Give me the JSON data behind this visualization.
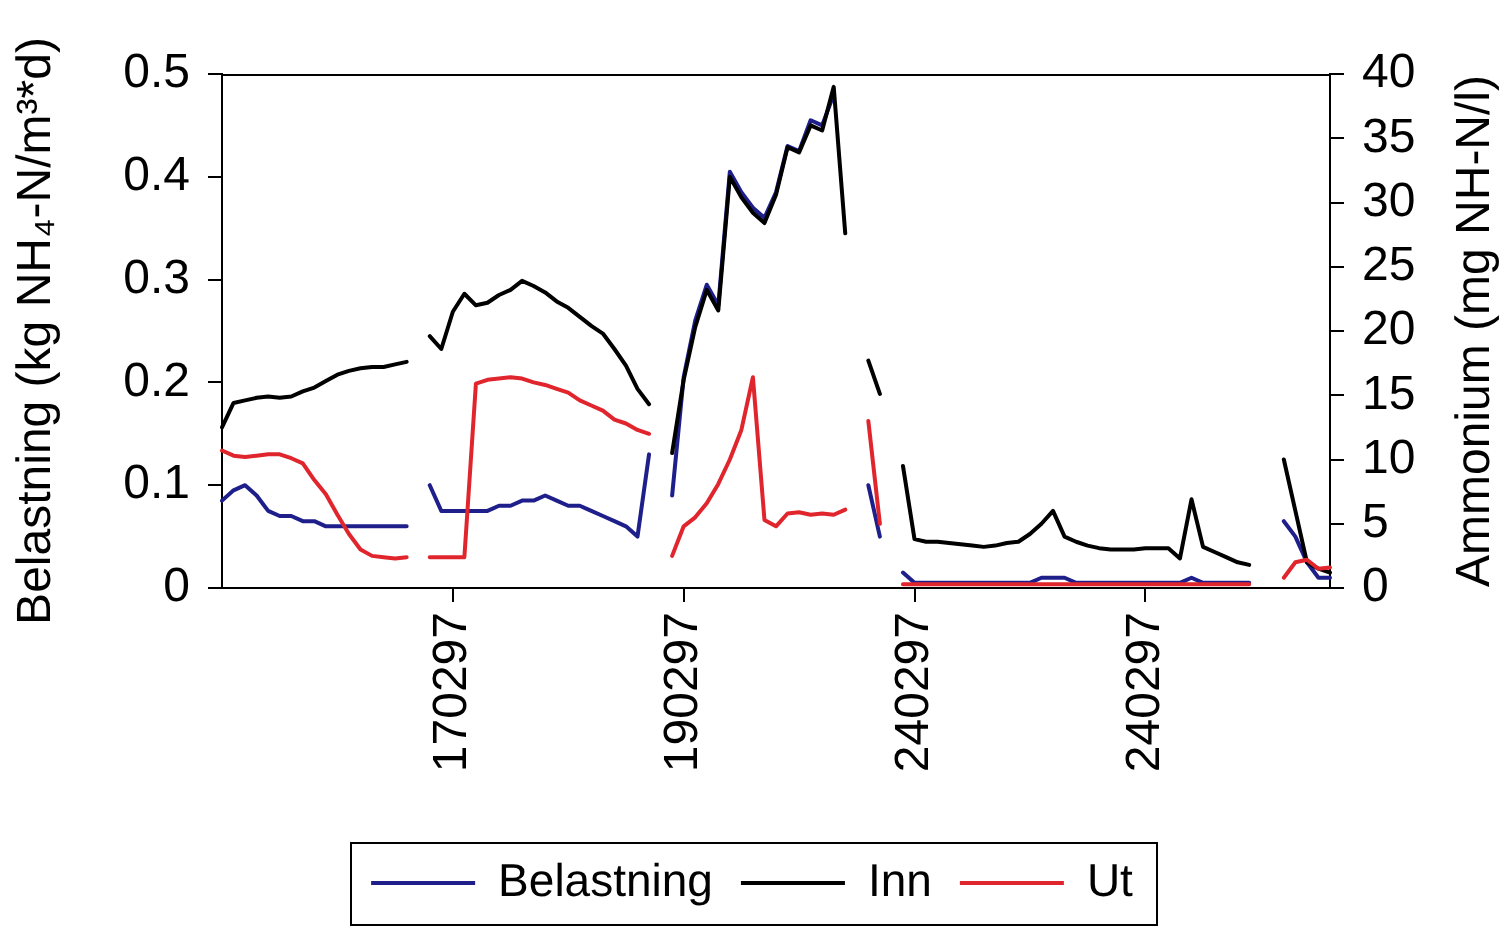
{
  "chart_data": {
    "type": "line",
    "ylabel": "Belastning (kg NH₄-N/m³*d)",
    "y2label": "Ammonium (mg NH-N/l)",
    "categories": [
      null,
      null,
      null,
      null,
      null,
      null,
      null,
      null,
      null,
      null,
      null,
      null,
      null,
      null,
      null,
      null,
      null,
      null,
      null,
      null,
      "170297",
      null,
      null,
      null,
      null,
      null,
      null,
      null,
      null,
      null,
      null,
      null,
      null,
      null,
      null,
      null,
      null,
      null,
      null,
      null,
      "190297",
      null,
      null,
      null,
      null,
      null,
      null,
      null,
      null,
      null,
      null,
      null,
      null,
      null,
      null,
      null,
      null,
      null,
      null,
      null,
      "240297",
      null,
      null,
      null,
      null,
      null,
      null,
      null,
      null,
      null,
      null,
      null,
      null,
      null,
      null,
      null,
      null,
      null,
      null,
      null,
      "240297",
      null,
      null,
      null,
      null,
      null,
      null,
      null,
      null,
      null,
      null,
      null,
      null,
      null,
      null,
      null,
      null
    ],
    "series": [
      {
        "name": "Belastning",
        "color": "#1f1f8c",
        "values": [
          0.085,
          0.095,
          0.1,
          0.09,
          0.075,
          0.07,
          0.07,
          0.065,
          0.065,
          0.06,
          0.06,
          0.06,
          0.06,
          0.06,
          0.06,
          0.06,
          0.06,
          null,
          0.1,
          0.075,
          0.075,
          0.075,
          0.075,
          0.075,
          0.08,
          0.08,
          0.085,
          0.085,
          0.09,
          0.085,
          0.08,
          0.08,
          0.075,
          0.07,
          0.065,
          0.06,
          0.05,
          0.13,
          null,
          0.09,
          0.205,
          0.26,
          0.295,
          0.275,
          0.405,
          0.385,
          0.37,
          0.36,
          0.385,
          0.43,
          0.425,
          0.455,
          0.45,
          0.48,
          null,
          null,
          0.1,
          0.05,
          null,
          0.015,
          0.005,
          0.005,
          0.005,
          0.005,
          0.005,
          0.005,
          0.005,
          0.005,
          0.005,
          0.005,
          0.005,
          0.01,
          0.01,
          0.01,
          0.005,
          0.005,
          0.005,
          0.005,
          0.005,
          0.005,
          0.005,
          0.005,
          0.005,
          0.005,
          0.01,
          0.005,
          0.005,
          0.005,
          0.005,
          0.005,
          null,
          null,
          0.065,
          0.05,
          0.025,
          0.01,
          0.01
        ]
      },
      {
        "name": "Inn",
        "color": "#000000",
        "axis": "y2",
        "values": [
          12.5,
          14.4,
          14.6,
          14.8,
          14.9,
          14.8,
          14.9,
          15.3,
          15.6,
          16.1,
          16.6,
          16.9,
          17.1,
          17.2,
          17.2,
          17.4,
          17.6,
          null,
          19.6,
          18.6,
          21.5,
          22.9,
          22,
          22.2,
          22.8,
          23.2,
          23.9,
          23.5,
          23,
          22.3,
          21.8,
          21.1,
          20.4,
          19.8,
          18.6,
          17.3,
          15.5,
          14.3,
          null,
          10.5,
          16.2,
          20.3,
          23.2,
          21.6,
          32,
          30.4,
          29.2,
          28.4,
          30.6,
          34.3,
          33.9,
          36,
          35.6,
          39,
          27.6,
          null,
          17.7,
          15.1,
          null,
          9.5,
          3.8,
          3.6,
          3.6,
          3.5,
          3.4,
          3.3,
          3.2,
          3.3,
          3.5,
          3.6,
          4.2,
          5,
          6,
          4,
          3.6,
          3.3,
          3.1,
          3,
          3,
          3,
          3.1,
          3.1,
          3.1,
          2.3,
          6.9,
          3.2,
          2.8,
          2.4,
          2,
          1.8,
          null,
          null,
          10,
          6,
          2,
          1.5,
          1.2
        ]
      },
      {
        "name": "Ut",
        "color": "#e0252d",
        "axis": "y2",
        "values": [
          10.7,
          10.3,
          10.2,
          10.3,
          10.4,
          10.4,
          10.1,
          9.7,
          8.4,
          7.3,
          5.7,
          4.2,
          3,
          2.5,
          2.4,
          2.3,
          2.4,
          null,
          2.4,
          2.4,
          2.4,
          2.4,
          15.9,
          16.2,
          16.3,
          16.4,
          16.3,
          16,
          15.8,
          15.5,
          15.2,
          14.6,
          14.2,
          13.8,
          13.1,
          12.8,
          12.3,
          12,
          null,
          2.5,
          4.8,
          5.5,
          6.6,
          8.1,
          10,
          12.3,
          16.4,
          5.3,
          4.8,
          5.8,
          5.9,
          5.7,
          5.8,
          5.7,
          6.1,
          null,
          13,
          5,
          null,
          0.3,
          0.3,
          0.3,
          0.3,
          0.3,
          0.3,
          0.3,
          0.3,
          0.3,
          0.3,
          0.3,
          0.3,
          0.3,
          0.3,
          0.3,
          0.3,
          0.3,
          0.3,
          0.3,
          0.3,
          0.3,
          0.3,
          0.3,
          0.3,
          0.3,
          0.3,
          0.3,
          0.3,
          0.3,
          0.3,
          0.3,
          null,
          null,
          0.8,
          2,
          2.2,
          1.5,
          1.6
        ]
      }
    ],
    "ylim": [
      0,
      0.5
    ],
    "yticks": [
      0,
      0.1,
      0.2,
      0.3,
      0.4,
      0.5
    ],
    "y2lim": [
      0,
      40
    ],
    "y2ticks": [
      0,
      5,
      10,
      15,
      20,
      25,
      30,
      35,
      40
    ],
    "legend": "bottom"
  }
}
